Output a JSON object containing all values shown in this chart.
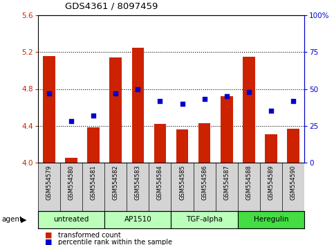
{
  "title": "GDS4361 / 8097459",
  "samples": [
    "GSM554579",
    "GSM554580",
    "GSM554581",
    "GSM554582",
    "GSM554583",
    "GSM554584",
    "GSM554585",
    "GSM554586",
    "GSM554587",
    "GSM554588",
    "GSM554589",
    "GSM554590"
  ],
  "bar_values": [
    5.16,
    4.05,
    4.38,
    5.14,
    5.25,
    4.42,
    4.36,
    4.43,
    4.72,
    5.15,
    4.31,
    4.37
  ],
  "dot_values": [
    47,
    28,
    32,
    47,
    50,
    42,
    40,
    43,
    45,
    48,
    35,
    42
  ],
  "ylim": [
    4.0,
    5.6
  ],
  "yticks_left": [
    4.0,
    4.4,
    4.8,
    5.2,
    5.6
  ],
  "yticks_right": [
    0,
    25,
    50,
    75,
    100
  ],
  "yticks_right_labels": [
    "0",
    "25",
    "50",
    "75",
    "100%"
  ],
  "bar_color": "#cc2200",
  "dot_color": "#0000cc",
  "agent_groups": [
    {
      "label": "untreated",
      "indices": [
        0,
        1,
        2
      ],
      "color": "#bbffbb"
    },
    {
      "label": "AP1510",
      "indices": [
        3,
        4,
        5
      ],
      "color": "#bbffbb"
    },
    {
      "label": "TGF-alpha",
      "indices": [
        6,
        7,
        8
      ],
      "color": "#bbffbb"
    },
    {
      "label": "Heregulin",
      "indices": [
        9,
        10,
        11
      ],
      "color": "#44dd44"
    }
  ],
  "grid_yticks": [
    4.4,
    4.8,
    5.2
  ],
  "legend_label_bar": "transformed count",
  "legend_label_dot": "percentile rank within the sample",
  "bg_color": "#ffffff",
  "right_yaxis_color": "#0000cc",
  "left_yaxis_color": "#cc2200",
  "label_area_color": "#d4d4d4"
}
